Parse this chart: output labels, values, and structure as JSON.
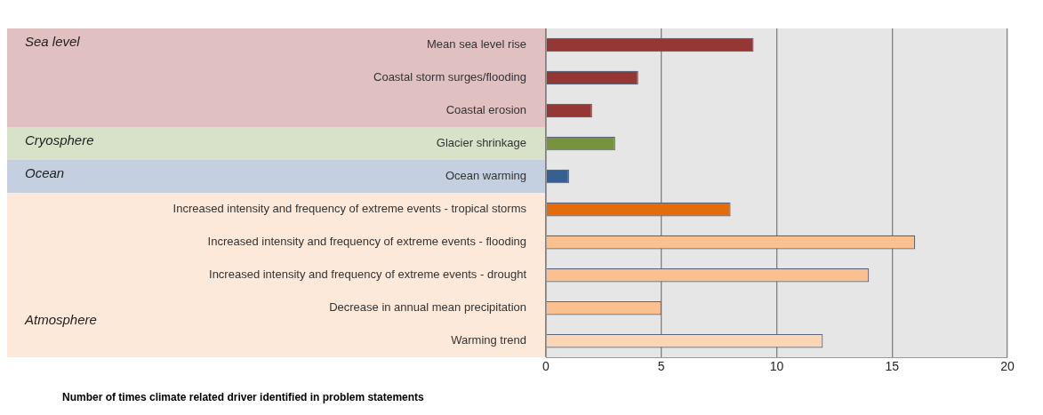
{
  "chart_data": {
    "type": "bar",
    "orientation": "horizontal",
    "xlabel": "Number of times climate related driver identified in problem statements",
    "categories": [
      "Mean sea level rise",
      "Coastal storm surges/flooding",
      "Coastal erosion",
      "Glacier shrinkage",
      "Ocean warming",
      "Increased intensity and frequency of extreme events - tropical storms",
      "Increased intensity and frequency of extreme events - flooding",
      "Increased intensity and frequency of extreme events - drought",
      "Decrease in annual mean precipitation",
      "Warming trend"
    ],
    "values": [
      9,
      4,
      2,
      3,
      1,
      8,
      16,
      14,
      5,
      12
    ],
    "colors": [
      "#953735",
      "#953735",
      "#953735",
      "#77933c",
      "#376092",
      "#e46c0a",
      "#fac090",
      "#fac090",
      "#fac090",
      "#fcd5b5"
    ],
    "xlim": [
      0,
      20
    ],
    "xticks": [
      0,
      5,
      10,
      15,
      20
    ],
    "grid": "x",
    "legend": false,
    "annotations": [
      "Sea level",
      "Cryosphere",
      "Ocean",
      "Atmosphere"
    ]
  }
}
